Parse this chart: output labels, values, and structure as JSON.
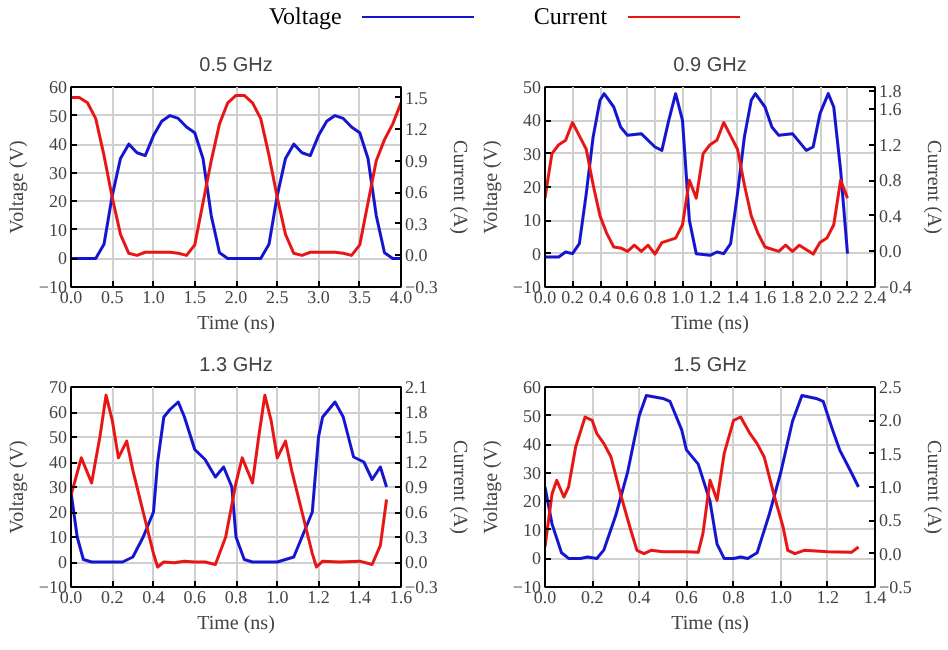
{
  "chart_data": [
    {
      "type": "line",
      "title": "0.5 GHz",
      "xlabel": "Time (ns)",
      "ylabel": "Voltage (V)",
      "y2label": "Current (A)",
      "legend": "top",
      "grid": true,
      "xlim": [
        0,
        4
      ],
      "xticks": [
        {
          "value": 0,
          "label": "0.0"
        },
        0.5,
        {
          "value": 1,
          "label": "1.0"
        },
        1.5,
        {
          "value": 2,
          "label": "2.0"
        },
        2.5,
        {
          "value": 3,
          "label": "3.0"
        },
        3.5,
        {
          "value": 4,
          "label": "4.0"
        }
      ],
      "ylim": [
        -10,
        60
      ],
      "yticks": [
        -10,
        0,
        10,
        20,
        30,
        40,
        50,
        60
      ],
      "y2lim": [
        -0.3,
        1.6
      ],
      "y2ticks": [
        -0.3,
        {
          "value": 0,
          "label": "0.0"
        },
        0.3,
        0.6,
        0.9,
        1.2,
        1.5
      ],
      "series": [
        {
          "name": "Voltage",
          "color": "#1515d0",
          "x": [
            0,
            0.3,
            0.4,
            0.5,
            0.6,
            0.7,
            0.8,
            0.9,
            1.0,
            1.1,
            1.2,
            1.3,
            1.4,
            1.5,
            1.6,
            1.7,
            1.8,
            1.9,
            2.3,
            2.4,
            2.5,
            2.6,
            2.7,
            2.8,
            2.9,
            3.0,
            3.1,
            3.2,
            3.3,
            3.4,
            3.5,
            3.6,
            3.7,
            3.8,
            3.9,
            4.0
          ],
          "values": [
            0,
            0,
            5,
            22,
            35,
            40,
            37,
            36,
            43,
            48,
            50,
            49,
            46,
            44,
            35,
            15,
            2,
            0,
            0,
            5,
            22,
            35,
            40,
            37,
            36,
            43,
            48,
            50,
            49,
            46,
            44,
            35,
            15,
            2,
            0,
            0
          ]
        },
        {
          "name": "Current",
          "color": "#e81515",
          "axis": "y2",
          "x": [
            0,
            0.1,
            0.2,
            0.3,
            0.4,
            0.5,
            0.6,
            0.7,
            0.8,
            0.9,
            1.0,
            1.2,
            1.3,
            1.4,
            1.5,
            1.6,
            1.7,
            1.8,
            1.9,
            2.0,
            2.1,
            2.2,
            2.3,
            2.4,
            2.5,
            2.6,
            2.7,
            2.8,
            2.9,
            3.0,
            3.2,
            3.3,
            3.4,
            3.5,
            3.6,
            3.7,
            3.8,
            3.9,
            4.0
          ],
          "values": [
            1.5,
            1.5,
            1.45,
            1.3,
            0.95,
            0.55,
            0.2,
            0.02,
            0.0,
            0.03,
            0.03,
            0.03,
            0.02,
            0.0,
            0.1,
            0.5,
            0.9,
            1.25,
            1.45,
            1.52,
            1.52,
            1.45,
            1.3,
            0.95,
            0.55,
            0.2,
            0.02,
            0.0,
            0.03,
            0.03,
            0.03,
            0.02,
            0.0,
            0.1,
            0.5,
            0.9,
            1.1,
            1.25,
            1.45
          ]
        }
      ]
    },
    {
      "type": "line",
      "title": "0.9 GHz",
      "xlabel": "Time (ns)",
      "ylabel": "Voltage (V)",
      "y2label": "Current (A)",
      "grid": true,
      "xlim": [
        0,
        2.4
      ],
      "xticks": [
        {
          "value": 0,
          "label": "0.0"
        },
        0.2,
        0.4,
        0.6,
        0.8,
        {
          "value": 1,
          "label": "1.0"
        },
        1.2,
        1.4,
        1.6,
        1.8,
        {
          "value": 2,
          "label": "2.0"
        },
        2.2,
        2.4
      ],
      "ylim": [
        -10,
        50
      ],
      "yticks": [
        -10,
        0,
        10,
        20,
        30,
        40,
        50
      ],
      "y2lim": [
        -0.4,
        1.85
      ],
      "y2ticks": [
        -0.4,
        {
          "value": 0,
          "label": "0.0"
        },
        0.4,
        0.8,
        1.2,
        1.6,
        1.8
      ],
      "series": [
        {
          "color": "#1515d0",
          "x": [
            0,
            0.1,
            0.15,
            0.2,
            0.25,
            0.3,
            0.35,
            0.4,
            0.43,
            0.5,
            0.55,
            0.6,
            0.7,
            0.8,
            0.85,
            0.9,
            0.95,
            1.0,
            1.05,
            1.1,
            1.2,
            1.25,
            1.3,
            1.35,
            1.4,
            1.45,
            1.5,
            1.53,
            1.6,
            1.65,
            1.7,
            1.8,
            1.9,
            1.95,
            2.0,
            2.06,
            2.1,
            2.15,
            2.2
          ],
          "values": [
            -1,
            -1,
            0.5,
            0,
            3,
            18,
            35,
            46,
            48,
            44,
            38,
            35.5,
            36,
            32,
            31,
            40,
            48,
            40,
            10,
            0,
            -0.5,
            0.5,
            0,
            3,
            18,
            35,
            46,
            48,
            44,
            38,
            35.5,
            36,
            31,
            32,
            42,
            48,
            44,
            25,
            0
          ]
        },
        {
          "color": "#e81515",
          "axis": "y2",
          "x": [
            0,
            0.05,
            0.1,
            0.15,
            0.2,
            0.25,
            0.3,
            0.35,
            0.4,
            0.45,
            0.5,
            0.55,
            0.6,
            0.65,
            0.7,
            0.75,
            0.8,
            0.85,
            0.95,
            1.0,
            1.05,
            1.1,
            1.15,
            1.2,
            1.25,
            1.3,
            1.35,
            1.4,
            1.45,
            1.5,
            1.55,
            1.6,
            1.7,
            1.75,
            1.8,
            1.85,
            1.95,
            2.0,
            2.05,
            2.1,
            2.15,
            2.2
          ],
          "values": [
            0.6,
            1.1,
            1.2,
            1.25,
            1.45,
            1.3,
            1.15,
            0.75,
            0.4,
            0.2,
            0.05,
            0.04,
            0.0,
            0.07,
            0.0,
            0.07,
            -0.03,
            0.1,
            0.15,
            0.3,
            0.8,
            0.6,
            1.1,
            1.2,
            1.25,
            1.45,
            1.3,
            1.15,
            0.75,
            0.4,
            0.2,
            0.05,
            0.0,
            0.07,
            0.0,
            0.07,
            -0.03,
            0.1,
            0.15,
            0.3,
            0.8,
            0.6
          ]
        }
      ]
    },
    {
      "type": "line",
      "title": "1.3 GHz",
      "xlabel": "Time (ns)",
      "ylabel": "Voltage (V)",
      "y2label": "Current (A)",
      "grid": true,
      "xlim": [
        0,
        1.6
      ],
      "xticks": [
        {
          "value": 0,
          "label": "0.0"
        },
        0.2,
        0.4,
        0.6,
        0.8,
        {
          "value": 1,
          "label": "1.0"
        },
        1.2,
        1.4,
        1.6
      ],
      "ylim": [
        -10,
        70
      ],
      "yticks": [
        -10,
        0,
        10,
        20,
        30,
        40,
        50,
        60,
        70
      ],
      "y2lim": [
        -0.3,
        2.1
      ],
      "y2ticks": [
        -0.3,
        {
          "value": 0,
          "label": "0.0"
        },
        0.3,
        0.6,
        0.9,
        1.2,
        1.5,
        1.8,
        2.1
      ],
      "series": [
        {
          "color": "#1515d0",
          "x": [
            0,
            0.03,
            0.06,
            0.1,
            0.25,
            0.3,
            0.35,
            0.4,
            0.42,
            0.45,
            0.48,
            0.52,
            0.55,
            0.6,
            0.65,
            0.7,
            0.74,
            0.78,
            0.8,
            0.84,
            0.88,
            1.0,
            1.08,
            1.12,
            1.17,
            1.2,
            1.22,
            1.28,
            1.32,
            1.37,
            1.42,
            1.46,
            1.5,
            1.53
          ],
          "values": [
            28,
            10,
            1,
            0,
            0,
            2,
            10,
            20,
            40,
            58,
            61,
            64,
            58,
            45,
            41,
            34,
            38,
            30,
            10,
            1,
            0,
            0,
            2,
            10,
            20,
            50,
            58,
            64,
            58,
            42,
            40,
            33,
            38,
            30
          ]
        },
        {
          "color": "#e81515",
          "axis": "y2",
          "x": [
            0,
            0.05,
            0.1,
            0.14,
            0.17,
            0.2,
            0.23,
            0.27,
            0.3,
            0.35,
            0.4,
            0.42,
            0.45,
            0.5,
            0.55,
            0.6,
            0.65,
            0.7,
            0.75,
            0.8,
            0.83,
            0.88,
            0.91,
            0.94,
            0.97,
            1.0,
            1.04,
            1.07,
            1.12,
            1.17,
            1.19,
            1.22,
            1.3,
            1.4,
            1.46,
            1.5,
            1.53
          ],
          "values": [
            0.8,
            1.25,
            0.95,
            1.5,
            2.0,
            1.7,
            1.25,
            1.45,
            1.1,
            0.6,
            0.1,
            -0.06,
            0.0,
            -0.01,
            0.01,
            0.0,
            0.0,
            -0.03,
            0.3,
            0.95,
            1.25,
            0.95,
            1.5,
            2.0,
            1.7,
            1.25,
            1.45,
            1.1,
            0.6,
            0.1,
            -0.06,
            0.01,
            0.0,
            0.01,
            -0.03,
            0.2,
            0.75
          ]
        }
      ]
    },
    {
      "type": "line",
      "title": "1.5 GHz",
      "xlabel": "Time (ns)",
      "ylabel": "Voltage (V)",
      "y2label": "Current (A)",
      "grid": true,
      "xlim": [
        0,
        1.4
      ],
      "xticks": [
        {
          "value": 0,
          "label": "0.0"
        },
        0.2,
        0.4,
        0.6,
        0.8,
        {
          "value": 1,
          "label": "1.0"
        },
        1.2,
        1.4
      ],
      "ylim": [
        -10,
        60
      ],
      "yticks": [
        -10,
        0,
        10,
        20,
        30,
        40,
        50,
        60
      ],
      "y2lim": [
        -0.5,
        2.5
      ],
      "y2ticks": [
        -0.5,
        {
          "value": 0,
          "label": "0.0"
        },
        0.5,
        {
          "value": 1,
          "label": "1.0"
        },
        1.5,
        {
          "value": 2,
          "label": "2.0"
        },
        2.5
      ],
      "series": [
        {
          "color": "#1515d0",
          "x": [
            0,
            0.03,
            0.07,
            0.1,
            0.15,
            0.18,
            0.22,
            0.25,
            0.3,
            0.35,
            0.4,
            0.43,
            0.5,
            0.53,
            0.58,
            0.6,
            0.65,
            0.7,
            0.73,
            0.76,
            0.8,
            0.83,
            0.86,
            0.9,
            0.95,
            1.0,
            1.05,
            1.09,
            1.15,
            1.18,
            1.22,
            1.25,
            1.3,
            1.33
          ],
          "values": [
            25,
            12,
            2,
            0,
            0,
            0.5,
            0,
            3,
            15,
            30,
            50,
            57,
            56,
            55,
            45,
            38,
            33,
            20,
            5,
            0,
            0,
            0.5,
            0,
            2,
            15,
            30,
            48,
            57,
            56,
            55,
            45,
            38,
            30,
            25
          ]
        },
        {
          "color": "#e81515",
          "axis": "y2",
          "x": [
            0,
            0.03,
            0.05,
            0.08,
            0.1,
            0.13,
            0.17,
            0.2,
            0.22,
            0.25,
            0.28,
            0.32,
            0.36,
            0.39,
            0.42,
            0.45,
            0.5,
            0.6,
            0.65,
            0.67,
            0.7,
            0.73,
            0.76,
            0.8,
            0.83,
            0.87,
            0.9,
            0.93,
            0.97,
            1.01,
            1.03,
            1.06,
            1.1,
            1.2,
            1.3,
            1.33
          ],
          "values": [
            0.1,
            0.9,
            1.1,
            0.85,
            1.0,
            1.6,
            2.05,
            2.0,
            1.8,
            1.65,
            1.45,
            0.9,
            0.4,
            0.05,
            0.0,
            0.05,
            0.03,
            0.03,
            0.02,
            0.3,
            1.1,
            0.8,
            1.5,
            2.0,
            2.05,
            1.8,
            1.65,
            1.45,
            0.9,
            0.4,
            0.05,
            0.0,
            0.05,
            0.03,
            0.02,
            0.1
          ]
        }
      ]
    }
  ]
}
